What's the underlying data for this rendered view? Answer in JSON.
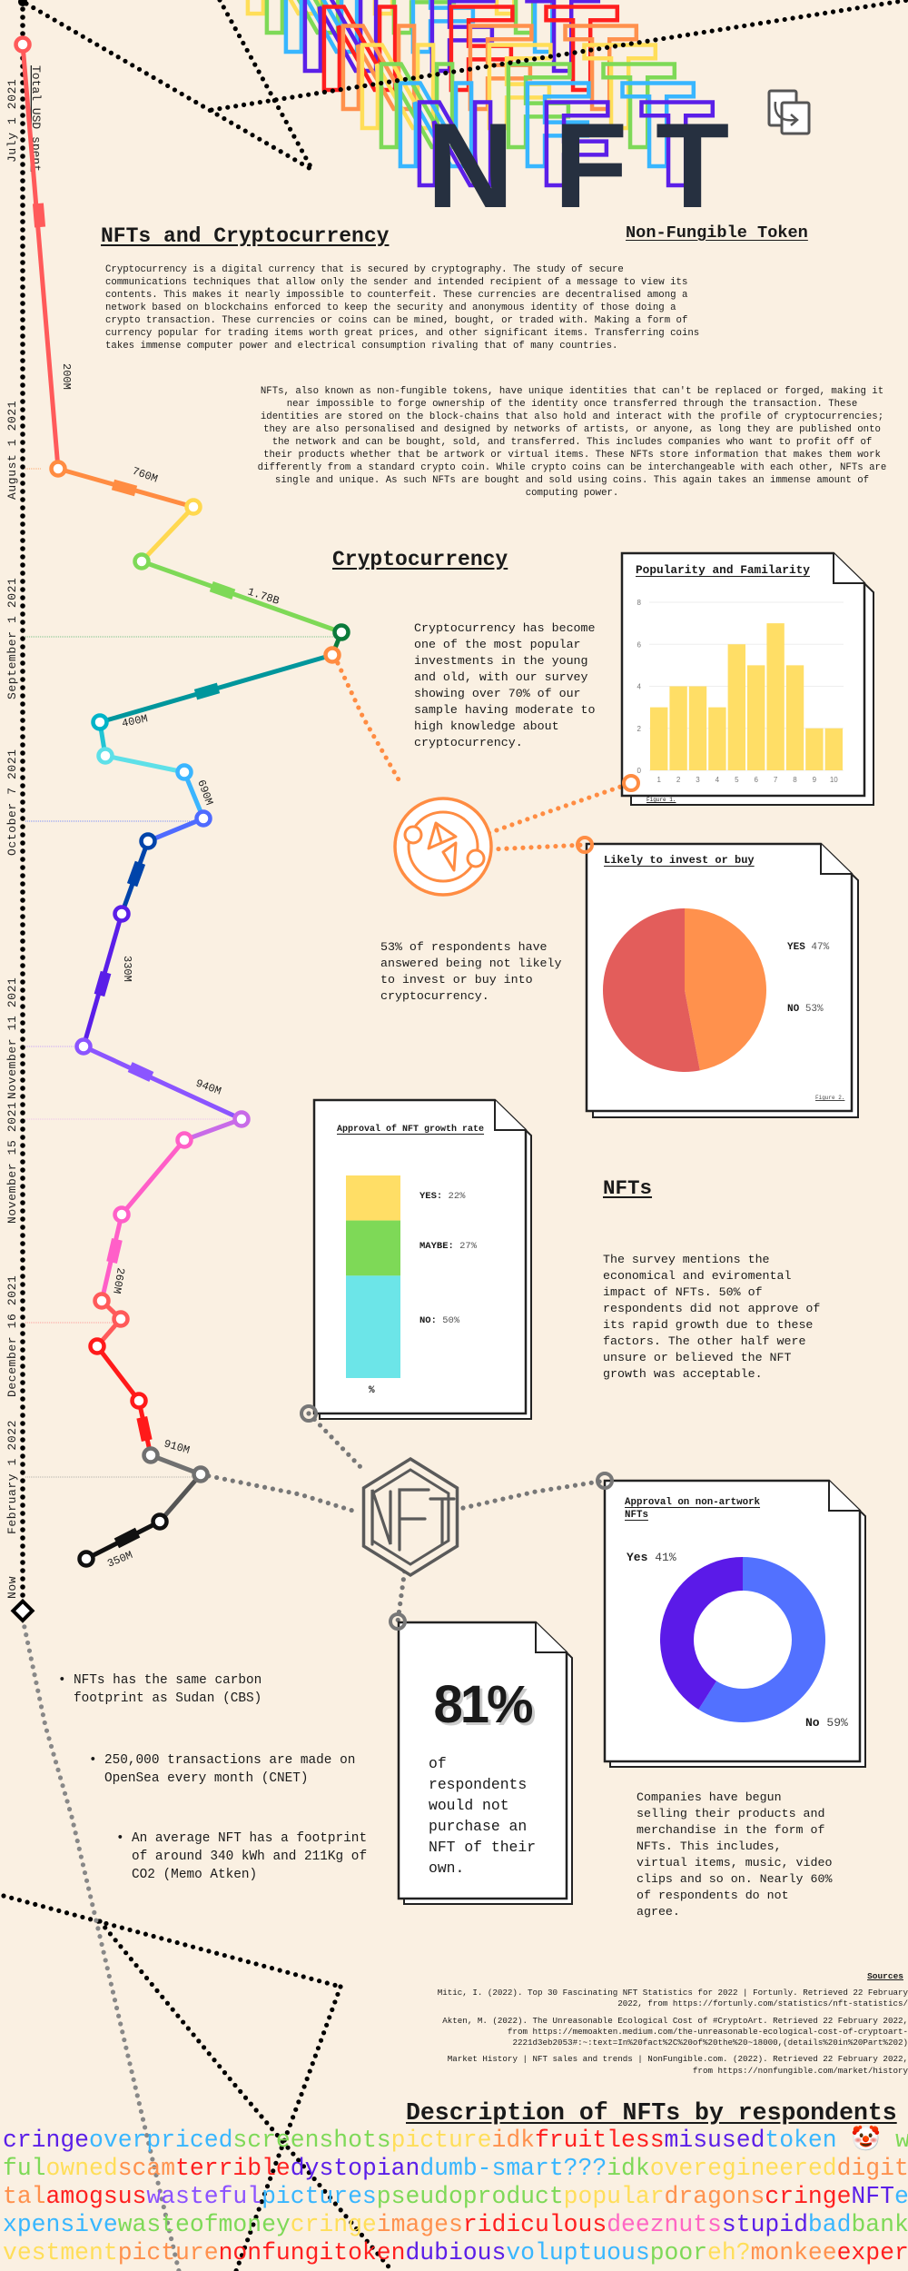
{
  "logo": {
    "text": "NFT",
    "letters": [
      "N",
      "F",
      "T"
    ],
    "color": "#263040",
    "outline_colors": [
      "#5b1fe8",
      "#38b6ff",
      "#7ed957",
      "#ffde59",
      "#ff914d",
      "#ff1f1f",
      "#5b1fe8",
      "#38b6ff",
      "#7ed957",
      "#ffde59"
    ],
    "copy_icon": "copy-swap-icon"
  },
  "header": {
    "title": "NFTs and Cryptocurrency",
    "subtitle": "Non-Fungible Token"
  },
  "intro": {
    "crypto_paragraph": "Cryptocurrency is a digital currency that is secured by cryptography. The study of secure\ncommunications techniques that allow only the sender and intended recipient of a message to view its\ncontents. This makes it nearly impossible to counterfeit. These currencies are decentralised among a\nnetwork based on blockchains enforced to keep the security and anonymous identity of those doing a\ncrypto transaction. These currencies or coins can be mined, bought, or traded with. Making a form of\ncurrency popular for trading items worth great prices, and other significant items. Transferring coins\ntakes immense computer power and electrical consumption rivaling that of many countries.",
    "nft_paragraph": "NFTs, also known as non-fungible tokens, have unique identities that can't be replaced or forged, making it\nnear impossible to forge ownership of the identity once transferred through the transaction. These\nidentities are stored on the block-chains that also hold and interact with the profile of cryptocurrencies;\nthey are also personalised and designed by networks of artists, or anyone, as long they are published onto\nthe network and can be bought, sold, and transferred. This includes companies who want to profit off of\ntheir products whether that be artwork or virtual items. These NFTs store information that makes them work\ndifferently from a standard crypto coin. While crypto coins can be interchangeable with each other, NFTs are\nsingle and unique. As such NFTs are bought and sold using coins. This again takes an immense amount of\ncomputing power."
  },
  "timeline": {
    "axis_label": "Total USD spent",
    "dates": [
      "July 1 2021",
      "August 1 2021",
      "September 1 2021",
      "October 7 2021",
      "November 11 2021",
      "November 15 2021",
      "December 16 2021",
      "February 1 2022",
      "Now"
    ],
    "amounts": [
      "200M",
      "760M",
      "1.78B",
      "400M",
      "690M",
      "330M",
      "940M",
      "260M",
      "910M",
      "350M"
    ]
  },
  "crypto": {
    "heading": "Cryptocurrency",
    "paragraph": "Cryptocurrency has become\none of the most popular\ninvestments in the young\nand old, with our survey\nshowing over 70% of our\nsample having moderate to\nhigh knowledge about\ncryptocurrency.",
    "likely_paragraph": "53% of respondents have\nanswered being not likely\nto invest or buy into\ncryptocurrency.",
    "icon": "ethereum-coin-icon"
  },
  "nfts": {
    "heading": "NFTs",
    "paragraph": "The survey mentions the\neconomical and eviromental\nimpact of NFTs. 50% of\nrespondents did not approve of\nits rapid growth due to these\nfactors. The other half were\nunsure or believed the NFT\ngrowth was acceptable.",
    "icon": "nft-hexagon-icon",
    "stat_value": "81%",
    "stat_text": "of\nrespondents\nwould not\npurchase an\nNFT of their\nown.",
    "companies_paragraph": "Companies have begun\nselling their products and\nmerchandise in the form of\nNFTs. This includes,\nvirtual items, music, video\nclips and so on. Nearly 60%\nof respondents do not\nagree."
  },
  "facts": [
    "NFTs has the same carbon\nfootprint as Sudan (CBS)",
    "250,000 transactions are made on\nOpenSea every month (CNET)",
    "An average NFT has a footprint\nof around 340 kWh and 211Kg of\nCO2 (Memo Atken)"
  ],
  "sources": {
    "heading": "Sources",
    "items": [
      "Mitic, I. (2022). Top 30 Fascinating NFT Statistics for 2022 | Fortunly. Retrieved 22 February\n2022, from https://fortunly.com/statistics/nft-statistics/",
      "Akten, M. (2022). The Unreasonable Ecological Cost of #CryptoArt. Retrieved 22 February 2022,\nfrom https://memoakten.medium.com/the-unreasonable-ecological-cost-of-cryptoart-\n2221d3eb2053#:~:text=In%20fact%2C%20of%20the%20~18000,(details%20in%20Part%202)",
      "Market History | NFT sales and trends | NonFungible.com. (2022). Retrieved 22 February 2022,\nfrom https://nonfungible.com/market/history"
    ]
  },
  "wordcloud": {
    "heading": "Description of NFTs by respondents",
    "rows": [
      [
        [
          "cringe",
          "#5b1fe8"
        ],
        [
          "overpriced",
          "#38b6ff"
        ],
        [
          "screenshots",
          "#7ed957"
        ],
        [
          "picture",
          "#ffde59"
        ],
        [
          "idk",
          "#ff914d"
        ],
        [
          "fruitless",
          "#ff1f1f"
        ],
        [
          "misused",
          "#5b1fe8"
        ],
        [
          "token",
          "#38b6ff"
        ],
        [
          " 🤡 ",
          "#ff1f1f"
        ],
        [
          "was",
          "#7ed957"
        ]
      ],
      [
        [
          "ful",
          "#7ed957"
        ],
        [
          "owned",
          "#ffde59"
        ],
        [
          "scam",
          "#ff914d"
        ],
        [
          "terrible",
          "#ff1f1f"
        ],
        [
          "dystopian",
          "#5b1fe8"
        ],
        [
          "dumb-smart???",
          "#38b6ff"
        ],
        [
          "idk",
          "#7ed957"
        ],
        [
          "overegineered",
          "#ffde59"
        ],
        [
          "digit",
          "#ff914d"
        ]
      ],
      [
        [
          "tal",
          "#ff914d"
        ],
        [
          "amogsus",
          "#ff1f1f"
        ],
        [
          "wasteful",
          "#8c52ff"
        ],
        [
          "pictures",
          "#38b6ff"
        ],
        [
          "pseudoproduct",
          "#7ed957"
        ],
        [
          "popular",
          "#ffde59"
        ],
        [
          "dragons",
          "#ff914d"
        ],
        [
          "cringe",
          "#ff1f1f"
        ],
        [
          "NFT",
          "#5b1fe8"
        ],
        [
          "e",
          "#38b6ff"
        ]
      ],
      [
        [
          "xpensive",
          "#38b6ff"
        ],
        [
          "wasteofmoney",
          "#7ed957"
        ],
        [
          "cringe",
          "#ffde59"
        ],
        [
          "images",
          "#ff914d"
        ],
        [
          "ridiculous",
          "#ff1f1f"
        ],
        [
          "deeznuts",
          "#ff66c4"
        ],
        [
          "stupid",
          "#5b1fe8"
        ],
        [
          "bad",
          "#38b6ff"
        ],
        [
          "bank",
          "#7ed957"
        ]
      ],
      [
        [
          "vestment",
          "#ffde59"
        ],
        [
          "picture",
          "#ff914d"
        ],
        [
          "nonfungitoken",
          "#ff1f1f"
        ],
        [
          "dubious",
          "#5b1fe8"
        ],
        [
          "voluptuous",
          "#38b6ff"
        ],
        [
          "poor",
          "#7ed957"
        ],
        [
          "eh?",
          "#ffde59"
        ],
        [
          "monkee",
          "#ff914d"
        ],
        [
          "exper",
          "#ff1f1f"
        ]
      ]
    ]
  },
  "chart_data": [
    {
      "type": "bar",
      "title": "Popularity and Familarity",
      "categories": [
        "1",
        "2",
        "3",
        "4",
        "5",
        "6",
        "7",
        "8",
        "9",
        "10"
      ],
      "values": [
        3,
        4,
        4,
        3,
        6,
        5,
        7,
        5,
        2,
        2
      ],
      "ylim": [
        0,
        8
      ],
      "yticks": [
        "0",
        "2",
        "4",
        "6",
        "8"
      ],
      "grid": true,
      "color": "#ffde66",
      "caption": "Figure 1."
    },
    {
      "type": "pie",
      "title": "Likely to invest or buy",
      "series": [
        {
          "name": "YES",
          "label": "YES",
          "value_label": "47%",
          "value": 47,
          "color": "#ff914d"
        },
        {
          "name": "NO",
          "label": "NO",
          "value_label": "53%",
          "value": 53,
          "color": "#e35d5b"
        }
      ],
      "legend": "right",
      "caption": "Figure 2."
    },
    {
      "type": "bar",
      "subtype": "stacked",
      "title": "Approval of NFT growth rate",
      "xlabel": "%",
      "series": [
        {
          "name": "YES",
          "label": "YES:",
          "value_label": "22%",
          "value": 22,
          "color": "#ffde66"
        },
        {
          "name": "MAYBE",
          "label": "MAYBE:",
          "value_label": "27%",
          "value": 27,
          "color": "#7ed957"
        },
        {
          "name": "NO",
          "label": "NO:",
          "value_label": "50%",
          "value": 50,
          "color": "#6ce5e8"
        }
      ]
    },
    {
      "type": "pie",
      "subtype": "donut",
      "title": "Approval on non-artwork\nNFTs",
      "series": [
        {
          "name": "Yes",
          "label": "Yes",
          "value_label": "41%",
          "value": 41,
          "color": "#5b1ae8"
        },
        {
          "name": "No",
          "label": "No",
          "value_label": "59%",
          "value": 59,
          "color": "#5271ff"
        }
      ]
    }
  ]
}
